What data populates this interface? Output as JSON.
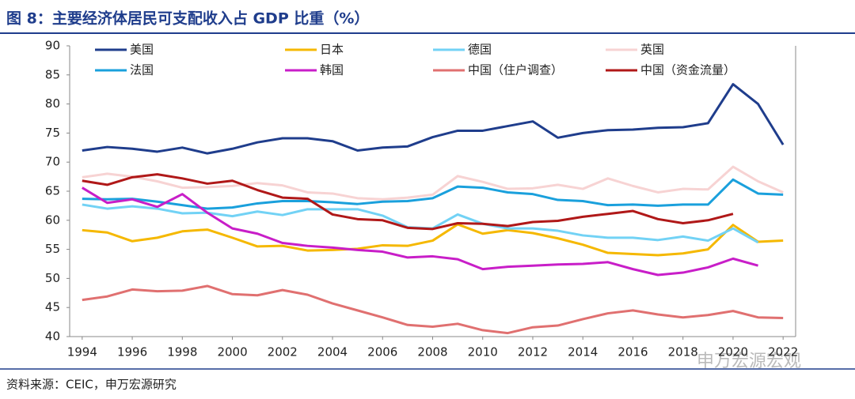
{
  "chart_data": {
    "type": "line",
    "title": "图 8：主要经济体居民可支配收入占 GDP 比重（%）",
    "source": "资料来源：CEIC，申万宏源研究",
    "watermark": "申万宏源宏观",
    "x": [
      1994,
      1995,
      1996,
      1997,
      1998,
      1999,
      2000,
      2001,
      2002,
      2003,
      2004,
      2005,
      2006,
      2007,
      2008,
      2009,
      2010,
      2011,
      2012,
      2013,
      2014,
      2015,
      2016,
      2017,
      2018,
      2019,
      2020,
      2021,
      2022
    ],
    "xlim": [
      1993.5,
      2022.5
    ],
    "xticks": [
      1994,
      1996,
      1998,
      2000,
      2002,
      2004,
      2006,
      2008,
      2010,
      2012,
      2014,
      2016,
      2018,
      2020,
      2022
    ],
    "ylim": [
      40,
      90
    ],
    "yticks": [
      40,
      45,
      50,
      55,
      60,
      65,
      70,
      75,
      80,
      85,
      90
    ],
    "series": [
      {
        "name": "美国",
        "color": "#1f3d8c",
        "values": [
          72.0,
          72.6,
          72.3,
          71.8,
          72.5,
          71.5,
          72.3,
          73.4,
          74.1,
          74.1,
          73.6,
          72.0,
          72.5,
          72.7,
          74.3,
          75.4,
          75.4,
          76.2,
          77.0,
          74.2,
          75.0,
          75.5,
          75.6,
          75.9,
          76.0,
          76.7,
          83.4,
          80.0,
          73.0
        ]
      },
      {
        "name": "日本",
        "color": "#f5b800",
        "values": [
          58.3,
          57.9,
          56.4,
          57.0,
          58.1,
          58.4,
          57.0,
          55.5,
          55.6,
          54.8,
          54.9,
          55.1,
          55.7,
          55.6,
          56.5,
          59.3,
          57.7,
          58.3,
          57.8,
          56.9,
          55.8,
          54.4,
          54.2,
          54.0,
          54.3,
          55.0,
          59.2,
          56.3,
          56.5
        ]
      },
      {
        "name": "德国",
        "color": "#72d2f5",
        "values": [
          62.7,
          62.0,
          62.4,
          62.0,
          61.2,
          61.3,
          60.7,
          61.5,
          60.9,
          61.9,
          61.9,
          61.9,
          60.8,
          58.8,
          58.6,
          61.0,
          59.4,
          58.6,
          58.6,
          58.2,
          57.4,
          57.0,
          57.0,
          56.6,
          57.2,
          56.5,
          58.6,
          56.2,
          null
        ]
      },
      {
        "name": "英国",
        "color": "#f7d3d3",
        "values": [
          67.4,
          68.0,
          67.5,
          66.7,
          65.6,
          65.7,
          65.9,
          66.4,
          66.0,
          64.8,
          64.6,
          63.8,
          63.6,
          63.9,
          64.4,
          67.6,
          66.6,
          65.4,
          65.5,
          66.1,
          65.4,
          67.2,
          65.9,
          64.8,
          65.4,
          65.3,
          69.2,
          66.7,
          64.8
        ]
      },
      {
        "name": "法国",
        "color": "#1aa0dc",
        "values": [
          63.7,
          63.6,
          63.7,
          63.2,
          62.6,
          62.0,
          62.2,
          62.9,
          63.3,
          63.3,
          63.1,
          62.8,
          63.2,
          63.3,
          63.8,
          65.8,
          65.6,
          64.8,
          64.5,
          63.5,
          63.3,
          62.6,
          62.7,
          62.5,
          62.7,
          62.7,
          67.0,
          64.6,
          64.4
        ]
      },
      {
        "name": "韩国",
        "color": "#c81ec8",
        "values": [
          65.6,
          63.0,
          63.6,
          62.3,
          64.5,
          61.3,
          58.6,
          57.7,
          56.1,
          55.6,
          55.3,
          54.9,
          54.6,
          53.6,
          53.8,
          53.3,
          51.6,
          52.0,
          52.2,
          52.4,
          52.5,
          52.8,
          51.6,
          50.6,
          51.0,
          51.9,
          53.4,
          52.2,
          null
        ]
      },
      {
        "name": "中国（住户调查）",
        "color": "#e07070",
        "values": [
          46.3,
          46.9,
          48.1,
          47.8,
          47.9,
          48.7,
          47.3,
          47.1,
          48.0,
          47.2,
          45.7,
          44.5,
          43.3,
          42.0,
          41.7,
          42.2,
          41.1,
          40.6,
          41.6,
          41.9,
          43.0,
          44.0,
          44.5,
          43.8,
          43.3,
          43.7,
          44.4,
          43.3,
          43.2
        ]
      },
      {
        "name": "中国（资金流量）",
        "color": "#b01818",
        "values": [
          66.8,
          66.1,
          67.4,
          67.9,
          67.2,
          66.3,
          66.8,
          65.2,
          63.9,
          63.7,
          61.0,
          60.2,
          60.0,
          58.7,
          58.5,
          59.5,
          59.4,
          59.0,
          59.7,
          59.9,
          60.6,
          61.1,
          61.6,
          60.2,
          59.5,
          60.0,
          61.1,
          null,
          null
        ]
      }
    ]
  }
}
